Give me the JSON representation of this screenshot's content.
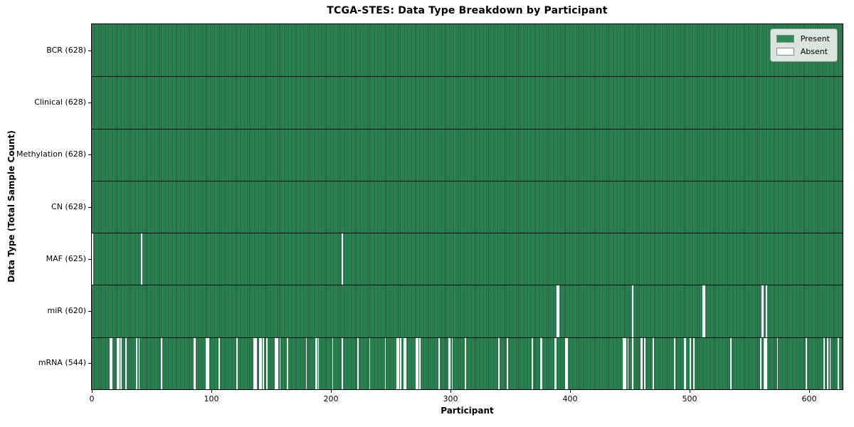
{
  "chart_data": {
    "type": "heatmap",
    "title": "TCGA-STES: Data Type Breakdown by Participant",
    "xlabel": "Participant",
    "ylabel": "Data Type (Total Sample Count)",
    "x_range": [
      0,
      628
    ],
    "x_ticks": [
      0,
      100,
      200,
      300,
      400,
      500,
      600
    ],
    "grid": false,
    "legend_position": "upper right",
    "colors": {
      "present": "#2e8b57",
      "present_edge": "#1c5838",
      "absent": "#fbfbfb"
    },
    "legend": [
      {
        "label": "Present",
        "color": "#2e8b57"
      },
      {
        "label": "Absent",
        "color": "#ffffff"
      }
    ],
    "total_participants": 628,
    "rows": [
      {
        "name": "BCR",
        "label": "BCR (628)",
        "present_count": 628,
        "absent_count": 0,
        "absent_participants": []
      },
      {
        "name": "Clinical",
        "label": "Clinical (628)",
        "present_count": 628,
        "absent_count": 0,
        "absent_participants": []
      },
      {
        "name": "Methylation",
        "label": "Methylation (628)",
        "present_count": 628,
        "absent_count": 0,
        "absent_participants": []
      },
      {
        "name": "CN",
        "label": "CN (628)",
        "present_count": 628,
        "absent_count": 0,
        "absent_participants": []
      },
      {
        "name": "MAF",
        "label": "MAF (625)",
        "present_count": 625,
        "absent_count": 3,
        "absent_participants": [
          0,
          41,
          209
        ]
      },
      {
        "name": "miR",
        "label": "miR (620)",
        "present_count": 620,
        "absent_count": 8,
        "absent_participants": [
          389,
          390,
          452,
          511,
          512,
          560,
          561,
          564
        ]
      },
      {
        "name": "mRNA",
        "label": "mRNA (544)",
        "present_count": 544,
        "absent_count": 84,
        "absent_participants": [
          15,
          16,
          21,
          22,
          24,
          28,
          37,
          39,
          58,
          85,
          86,
          95,
          96,
          97,
          106,
          121,
          135,
          136,
          137,
          140,
          141,
          143,
          146,
          153,
          154,
          155,
          157,
          163,
          179,
          187,
          188,
          189,
          201,
          209,
          222,
          232,
          245,
          255,
          256,
          258,
          261,
          262,
          271,
          272,
          274,
          290,
          298,
          299,
          301,
          312,
          340,
          347,
          368,
          375,
          376,
          387,
          388,
          396,
          397,
          444,
          445,
          446,
          448,
          452,
          459,
          460,
          462,
          469,
          487,
          495,
          496,
          500,
          503,
          534,
          559,
          562,
          563,
          564,
          573,
          597,
          612,
          615,
          617,
          624
        ]
      }
    ]
  }
}
